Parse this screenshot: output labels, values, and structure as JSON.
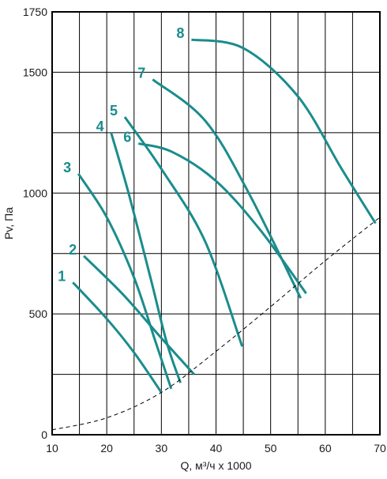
{
  "chart_data": {
    "type": "line",
    "xlabel": "Q, м³/ч x 1000",
    "ylabel": "Pv, Па",
    "xlim": [
      10,
      70
    ],
    "ylim": [
      0,
      1750
    ],
    "x_ticks": [
      10,
      20,
      30,
      40,
      50,
      60,
      70
    ],
    "y_ticks": [
      0,
      500,
      1000,
      1500,
      1750
    ],
    "grid": true,
    "series_color": "#1b8c8c",
    "series": [
      {
        "name": "1",
        "points": [
          [
            13.8,
            630
          ],
          [
            20,
            480
          ],
          [
            25,
            340
          ],
          [
            30,
            175
          ]
        ]
      },
      {
        "name": "2",
        "points": [
          [
            15.8,
            740
          ],
          [
            23,
            580
          ],
          [
            30,
            400
          ],
          [
            36,
            250
          ]
        ]
      },
      {
        "name": "3",
        "points": [
          [
            14.8,
            1080
          ],
          [
            20,
            900
          ],
          [
            25,
            650
          ],
          [
            29,
            380
          ],
          [
            31.8,
            190
          ]
        ]
      },
      {
        "name": "4",
        "points": [
          [
            20.8,
            1250
          ],
          [
            24,
            1000
          ],
          [
            28,
            650
          ],
          [
            31,
            380
          ],
          [
            33.5,
            215
          ]
        ]
      },
      {
        "name": "5",
        "points": [
          [
            23.3,
            1315
          ],
          [
            30,
            1100
          ],
          [
            38,
            800
          ],
          [
            44.8,
            365
          ]
        ]
      },
      {
        "name": "6",
        "points": [
          [
            25.8,
            1205
          ],
          [
            32,
            1170
          ],
          [
            40,
            1050
          ],
          [
            48,
            850
          ],
          [
            56.5,
            585
          ]
        ]
      },
      {
        "name": "7",
        "points": [
          [
            28.4,
            1470
          ],
          [
            38,
            1300
          ],
          [
            46,
            1000
          ],
          [
            55.5,
            565
          ]
        ]
      },
      {
        "name": "8",
        "points": [
          [
            35.5,
            1635
          ],
          [
            45,
            1600
          ],
          [
            55,
            1400
          ],
          [
            63,
            1100
          ],
          [
            69.2,
            875
          ]
        ]
      },
      {
        "name": "",
        "style": "dashed",
        "points": [
          [
            10,
            20
          ],
          [
            20,
            70
          ],
          [
            30,
            175
          ],
          [
            40,
            345
          ],
          [
            50,
            530
          ],
          [
            60,
            720
          ],
          [
            70,
            900
          ]
        ]
      }
    ]
  }
}
